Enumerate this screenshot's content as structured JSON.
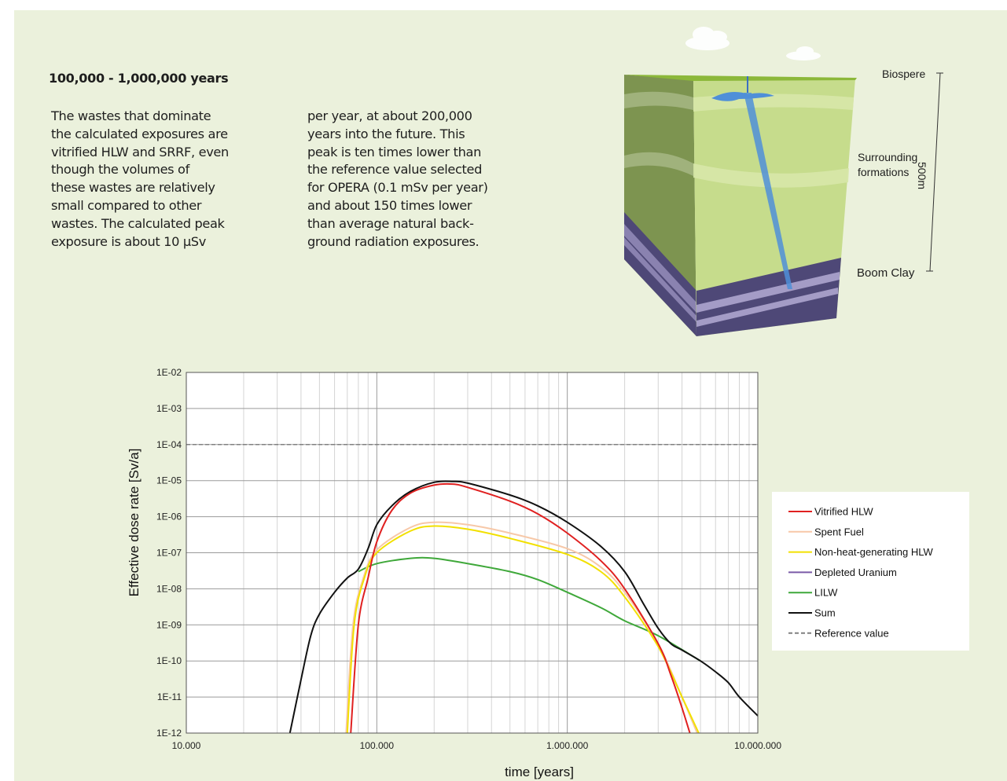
{
  "heading": "100,000 - 1,000,000 years",
  "column1_lines": [
    "The wastes that dominate",
    "the calculated exposures are",
    "vitrified HLW and SRRF, even",
    "though the volumes of",
    "these wastes are relatively",
    "small compared to other",
    "wastes. The calculated peak",
    "exposure is about 10 µSv"
  ],
  "column2_lines": [
    "per year,  at about 200,000",
    "years into the future. This",
    "peak is ten times lower than",
    "the reference value selected",
    "for OPERA (0.1 mSv per year)",
    "and about 150 times lower",
    "than average natural back-",
    "ground radiation exposures."
  ],
  "diagram": {
    "label_biosphere": "Biospere",
    "label_surrounding_1": "Surrounding",
    "label_surrounding_2": "formations",
    "label_boom_clay": "Boom Clay",
    "label_depth": "500m"
  },
  "colors": {
    "panel_bg": "#ebf1dc",
    "vitrified": "#e02020",
    "spent": "#f7c8a8",
    "nonheat": "#f2e000",
    "depleted": "#7a5aa8",
    "lilw": "#3fa83a",
    "sum": "#111111",
    "reference": "#808080"
  },
  "chart_data": {
    "type": "line",
    "xlabel": "time [years]",
    "ylabel": "Effective dose rate [Sv/a]",
    "x_scale": "log",
    "y_scale": "log",
    "xlim": [
      10000,
      10000000
    ],
    "ylim": [
      1e-12,
      0.01
    ],
    "x_tick_labels": [
      "10.000",
      "100.000",
      "1.000.000",
      "10.000.000"
    ],
    "y_tick_labels": [
      "1E-02",
      "1E-03",
      "1E-04",
      "1E-05",
      "1E-06",
      "1E-07",
      "1E-08",
      "1E-09",
      "1E-10",
      "1E-11",
      "1E-12"
    ],
    "grid": true,
    "legend_position": "right",
    "series": [
      {
        "name": "Vitrified HLW",
        "color_key": "vitrified",
        "points": [
          [
            73000,
            1e-12
          ],
          [
            80000,
            1e-09
          ],
          [
            90000,
            2e-08
          ],
          [
            100000,
            2e-07
          ],
          [
            120000,
            1.5e-06
          ],
          [
            150000,
            4.5e-06
          ],
          [
            200000,
            7.5e-06
          ],
          [
            250000,
            8e-06
          ],
          [
            300000,
            6.5e-06
          ],
          [
            500000,
            2.7e-06
          ],
          [
            700000,
            1.2e-06
          ],
          [
            1000000,
            3.5e-07
          ],
          [
            1500000,
            6e-08
          ],
          [
            2000000,
            1e-08
          ],
          [
            3000000,
            3e-10
          ],
          [
            3500000,
            4e-11
          ],
          [
            4000000,
            5e-12
          ],
          [
            4400000,
            1e-12
          ]
        ]
      },
      {
        "name": "Spent Fuel",
        "color_key": "spent",
        "points": [
          [
            69000,
            1e-12
          ],
          [
            75000,
            1e-09
          ],
          [
            85000,
            2e-08
          ],
          [
            100000,
            1.2e-07
          ],
          [
            150000,
            5e-07
          ],
          [
            200000,
            7e-07
          ],
          [
            300000,
            6e-07
          ],
          [
            500000,
            3.5e-07
          ],
          [
            1000000,
            1.3e-07
          ],
          [
            1500000,
            4e-08
          ],
          [
            2000000,
            8e-09
          ],
          [
            3000000,
            3e-10
          ],
          [
            4000000,
            1e-11
          ],
          [
            4800000,
            1e-12
          ]
        ]
      },
      {
        "name": "Non-heat-generating HLW",
        "color_key": "nonheat",
        "points": [
          [
            70000,
            1e-12
          ],
          [
            76000,
            1e-09
          ],
          [
            86000,
            2e-08
          ],
          [
            100000,
            1e-07
          ],
          [
            150000,
            4e-07
          ],
          [
            200000,
            5.5e-07
          ],
          [
            300000,
            4.5e-07
          ],
          [
            500000,
            2.5e-07
          ],
          [
            1000000,
            9e-08
          ],
          [
            1500000,
            3e-08
          ],
          [
            2000000,
            6e-09
          ],
          [
            3000000,
            2.5e-10
          ],
          [
            4000000,
            1e-11
          ],
          [
            4900000,
            1e-12
          ]
        ]
      },
      {
        "name": "Depleted Uranium",
        "color_key": "depleted",
        "points": []
      },
      {
        "name": "LILW",
        "color_key": "lilw",
        "points": [
          [
            80000,
            3e-08
          ],
          [
            100000,
            5e-08
          ],
          [
            150000,
            7e-08
          ],
          [
            200000,
            7e-08
          ],
          [
            300000,
            5e-08
          ],
          [
            500000,
            3e-08
          ],
          [
            700000,
            1.8e-08
          ],
          [
            1000000,
            8e-09
          ],
          [
            1500000,
            3e-09
          ],
          [
            2000000,
            1.3e-09
          ],
          [
            3000000,
            5e-10
          ],
          [
            5000000,
            1e-10
          ]
        ]
      },
      {
        "name": "Sum",
        "color_key": "sum",
        "points": [
          [
            35000,
            1e-12
          ],
          [
            40000,
            3e-11
          ],
          [
            45000,
            5e-10
          ],
          [
            50000,
            2e-09
          ],
          [
            60000,
            8e-09
          ],
          [
            70000,
            2e-08
          ],
          [
            80000,
            3.5e-08
          ],
          [
            90000,
            1.3e-07
          ],
          [
            100000,
            6e-07
          ],
          [
            120000,
            2e-06
          ],
          [
            150000,
            5e-06
          ],
          [
            200000,
            9e-06
          ],
          [
            250000,
            9.5e-06
          ],
          [
            300000,
            8.5e-06
          ],
          [
            500000,
            4e-06
          ],
          [
            700000,
            2e-06
          ],
          [
            1000000,
            7e-07
          ],
          [
            1500000,
            1.5e-07
          ],
          [
            2000000,
            3e-08
          ],
          [
            2500000,
            4e-09
          ],
          [
            3000000,
            8e-10
          ],
          [
            3500000,
            3e-10
          ],
          [
            4000000,
            2e-10
          ],
          [
            5000000,
            1e-10
          ],
          [
            6000000,
            5e-11
          ],
          [
            7000000,
            2.5e-11
          ],
          [
            8000000,
            1e-11
          ],
          [
            10000000,
            3e-12
          ]
        ]
      },
      {
        "name": "Reference value",
        "color_key": "reference",
        "dashed": true,
        "points": [
          [
            10000,
            0.0001
          ],
          [
            10000000,
            0.0001
          ]
        ]
      }
    ]
  }
}
